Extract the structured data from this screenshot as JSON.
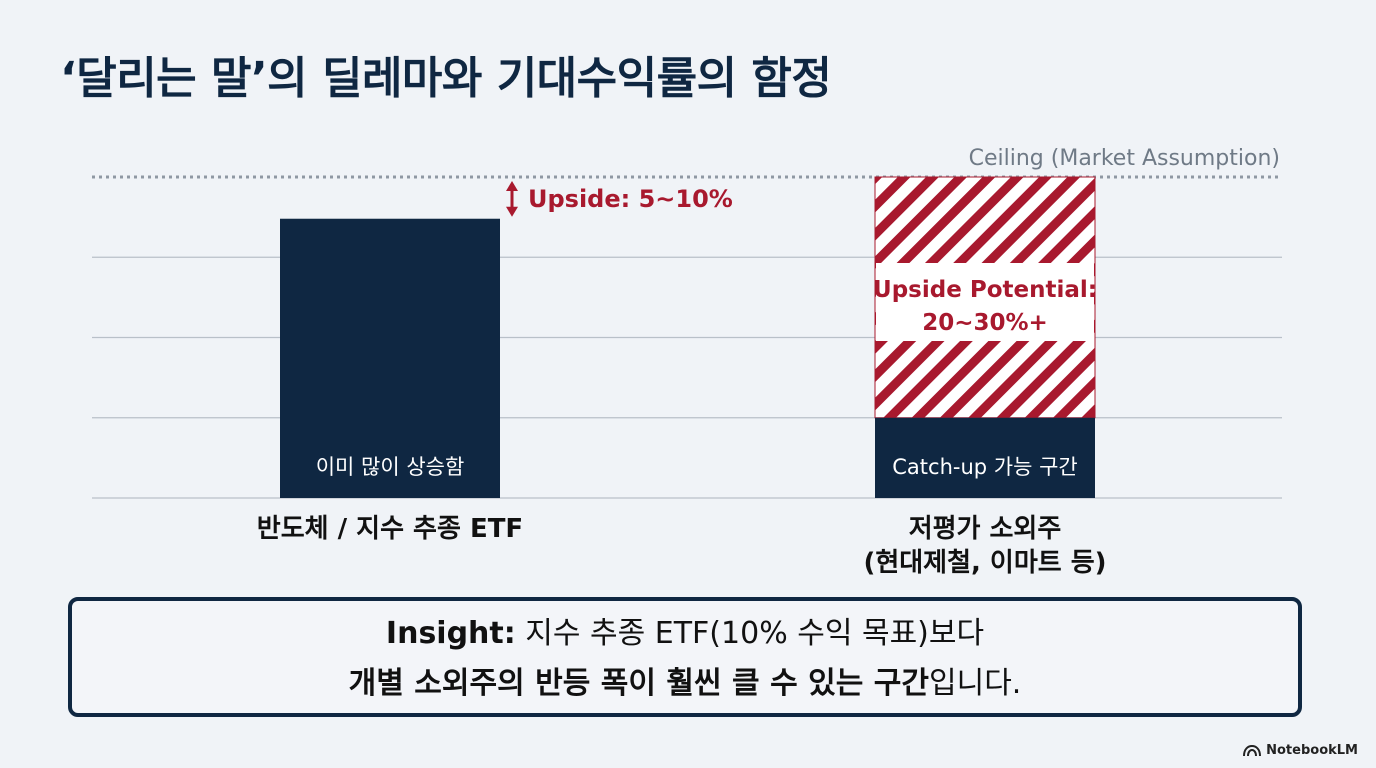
{
  "title": "‘달리는 말’의 딜레마와 기대수익률의 함정",
  "chart_data": {
    "type": "bar",
    "categories": [
      [
        "반도체 / 지수 추종 ETF"
      ],
      [
        "저평가 소외주",
        "(현대제철, 이마트 등)"
      ]
    ],
    "ylim": [
      0,
      100
    ],
    "values": [
      87,
      25
    ],
    "ceiling": {
      "value": 100,
      "label": "Ceiling (Market Assumption)"
    },
    "bar_labels": [
      "이미 많이 상승함",
      "Catch-up 가능 구간"
    ],
    "upside": [
      {
        "label": "Upside: 5~10%",
        "from": 87,
        "to": 100
      },
      {
        "label_lines": [
          "Upside Potential:",
          "20~30%+"
        ],
        "from": 25,
        "to": 100
      }
    ],
    "colors": {
      "bar": "#0f2742",
      "accent": "#a8192e",
      "grid": "#b9c0c9",
      "ceiling": "#8f98a3"
    }
  },
  "insight": {
    "lead": "Insight:",
    "line1": " 지수 추종 ETF(10% 수익 목표)보다",
    "line2_bold": "개별 소외주의 반등 폭이 훨씬 클 수 있는 구간",
    "line2_tail": "입니다."
  },
  "brand": {
    "name": "NotebookLM",
    "icon": "notebooklm-logo-icon"
  }
}
